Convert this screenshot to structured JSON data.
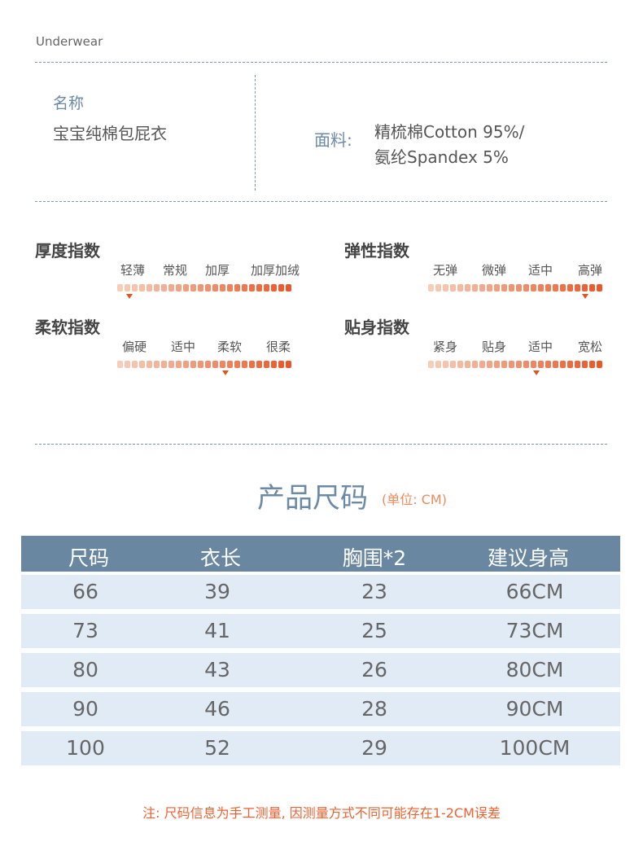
{
  "brand": "Underwear",
  "product": {
    "name_label": "名称",
    "name_value": "宝宝纯棉包屁衣"
  },
  "fabric": {
    "label": "面料:",
    "lines": [
      "精梳棉Cotton 95%/",
      "氨纶Spandex 5%"
    ]
  },
  "indices": [
    {
      "title": "厚度指数",
      "levels": [
        "轻薄",
        "常规",
        "加厚",
        "加厚加绒"
      ],
      "value": 0.07
    },
    {
      "title": "弹性指数",
      "levels": [
        "无弹",
        "微弹",
        "适中",
        "高弹"
      ],
      "value": 0.9
    },
    {
      "title": "柔软指数",
      "levels": [
        "偏硬",
        "适中",
        "柔软",
        "很柔"
      ],
      "value": 0.62
    },
    {
      "title": "贴身指数",
      "levels": [
        "紧身",
        "贴身",
        "适中",
        "宽松"
      ],
      "value": 0.62
    }
  ],
  "size_chart": {
    "title": "产品尺码",
    "unit": "(单位: CM)",
    "headers": [
      "尺码",
      "衣长",
      "胸围*2",
      "建议身高"
    ],
    "rows": [
      [
        "66",
        "39",
        "23",
        "66CM"
      ],
      [
        "73",
        "41",
        "25",
        "73CM"
      ],
      [
        "80",
        "43",
        "26",
        "80CM"
      ],
      [
        "90",
        "46",
        "28",
        "90CM"
      ],
      [
        "100",
        "52",
        "29",
        "100CM"
      ]
    ]
  },
  "note": "注: 尺码信息为手工测量, 因测量方式不同可能存在1-2CM误差",
  "colors": {
    "accent_blue": "#6a87a1",
    "row_bg": "#e1ebf5",
    "bar_light": "#f7cdb8",
    "bar_dark": "#e9582a",
    "note": "#ec6232"
  }
}
